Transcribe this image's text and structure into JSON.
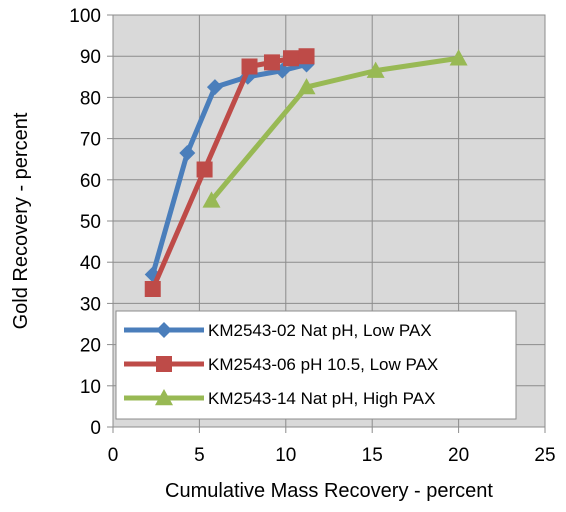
{
  "chart_data": {
    "type": "line",
    "title": "",
    "xlabel": "Cumulative Mass Recovery - percent",
    "ylabel": "Gold Recovery - percent",
    "xlim": [
      0,
      25
    ],
    "ylim": [
      0,
      100
    ],
    "xticks": [
      0,
      5,
      10,
      15,
      20,
      25
    ],
    "yticks": [
      0,
      10,
      20,
      30,
      40,
      50,
      60,
      70,
      80,
      90,
      100
    ],
    "grid": true,
    "plot_background": "#d9d9d9",
    "legend_position": "lower-right inside plot",
    "series": [
      {
        "name": "KM2543-02 Nat pH, Low PAX",
        "color": "#4a7ebb",
        "marker": "diamond",
        "x": [
          2.3,
          4.3,
          5.9,
          7.8,
          9.8,
          11.2
        ],
        "y": [
          37,
          66.5,
          82.5,
          85,
          86.5,
          88
        ]
      },
      {
        "name": "KM2543-06 pH 10.5, Low PAX",
        "color": "#be4b48",
        "marker": "square",
        "x": [
          2.3,
          5.3,
          7.9,
          9.2,
          10.3,
          11.2
        ],
        "y": [
          33.5,
          62.5,
          87.5,
          88.5,
          89.5,
          90
        ]
      },
      {
        "name": "KM2543-14 Nat pH, High PAX",
        "color": "#98b954",
        "marker": "triangle",
        "x": [
          5.7,
          11.2,
          15.2,
          20
        ],
        "y": [
          55,
          82.5,
          86.5,
          89.5
        ]
      }
    ]
  }
}
